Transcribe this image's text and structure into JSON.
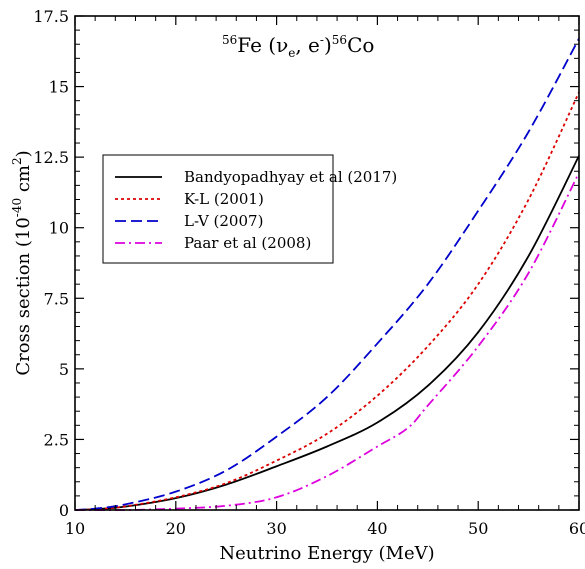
{
  "chart_data": {
    "type": "line",
    "title_parts": {
      "iso1": "56",
      "el1": "Fe (",
      "nu": "ν",
      "nu_sub": "e",
      "mid": ", e",
      "e_sup": "-",
      "close": ")",
      "iso2": "56",
      "el2": "Co"
    },
    "xlabel": "Neutrino Energy (MeV)",
    "ylabel_main": "Cross section (10",
    "ylabel_exp": "-40",
    "ylabel_unit": " cm",
    "ylabel_unit_exp": "2",
    "ylabel_close": ")",
    "xlim": [
      10,
      60
    ],
    "ylim": [
      0,
      17.5
    ],
    "x_ticks": [
      "10",
      "20",
      "30",
      "40",
      "50",
      "60"
    ],
    "y_ticks": [
      "0",
      "2.5",
      "5",
      "7.5",
      "10",
      "12.5",
      "15",
      "17.5"
    ],
    "legend_position": "center-left",
    "grid": false,
    "series": [
      {
        "name": "Bandyopadhyay et al (2017)",
        "color": "#000000",
        "dash": "solid",
        "x": [
          10,
          12,
          15,
          20,
          25,
          30,
          35,
          40,
          45,
          50,
          55,
          60
        ],
        "y": [
          0.0,
          0.03,
          0.12,
          0.42,
          0.9,
          1.55,
          2.25,
          3.1,
          4.4,
          6.3,
          9.0,
          12.55
        ]
      },
      {
        "name": "K-L (2001)",
        "color": "#dd0000",
        "dash": "dotted",
        "x": [
          10,
          12,
          15,
          20,
          25,
          30,
          35,
          40,
          45,
          50,
          55,
          60
        ],
        "y": [
          0.0,
          0.03,
          0.13,
          0.45,
          0.95,
          1.75,
          2.7,
          4.05,
          5.8,
          8.0,
          11.0,
          14.8
        ]
      },
      {
        "name": "L-V (2007)",
        "color": "#0000cc",
        "dash": "dashed",
        "x": [
          10,
          12,
          15,
          20,
          25,
          30,
          35,
          40,
          45,
          50,
          55,
          60
        ],
        "y": [
          0.0,
          0.05,
          0.2,
          0.65,
          1.4,
          2.6,
          4.0,
          5.9,
          8.0,
          10.6,
          13.4,
          16.7
        ]
      },
      {
        "name": "Paar et al (2008)",
        "color": "#dd00dd",
        "dash": "dashdot",
        "x": [
          10,
          15,
          20,
          25,
          30,
          35,
          40,
          43,
          45,
          50,
          55,
          60
        ],
        "y": [
          0.0,
          0.0,
          0.05,
          0.15,
          0.45,
          1.2,
          2.25,
          2.9,
          3.7,
          5.8,
          8.4,
          11.95
        ]
      }
    ]
  }
}
